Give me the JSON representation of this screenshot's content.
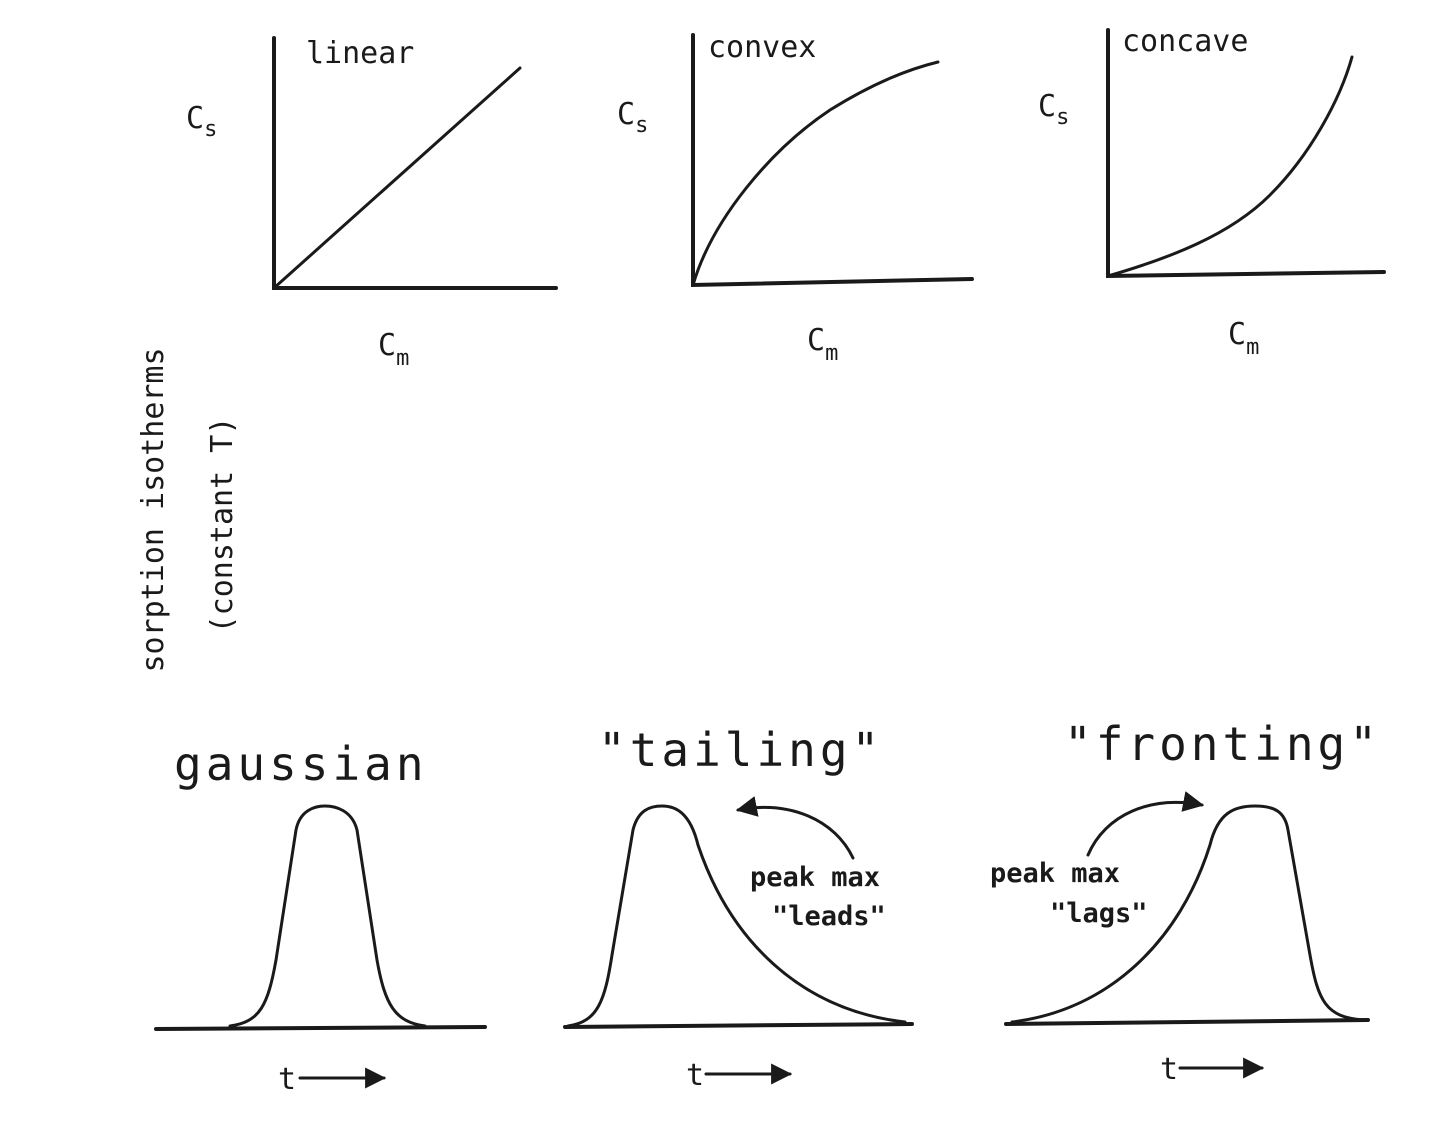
{
  "isotherms": {
    "title_line1": "sorption isotherms",
    "title_line2": "(constant T)",
    "panels": [
      {
        "label": "linear",
        "ylabel": "C",
        "ysub": "s",
        "xlabel": "C",
        "xsub": "m"
      },
      {
        "label": "convex",
        "ylabel": "C",
        "ysub": "s",
        "xlabel": "C",
        "xsub": "m"
      },
      {
        "label": "concave",
        "ylabel": "C",
        "ysub": "s",
        "xlabel": "C",
        "xsub": "m"
      }
    ]
  },
  "peaks": {
    "panels": [
      {
        "label": "gaussian",
        "time_label": "t"
      },
      {
        "label": "\"tailing\"",
        "time_label": "t",
        "note_line1": "peak max",
        "note_line2": "\"leads\""
      },
      {
        "label": "\"fronting\"",
        "time_label": "t",
        "note_line1": "peak max",
        "note_line2": "\"lags\""
      }
    ]
  }
}
